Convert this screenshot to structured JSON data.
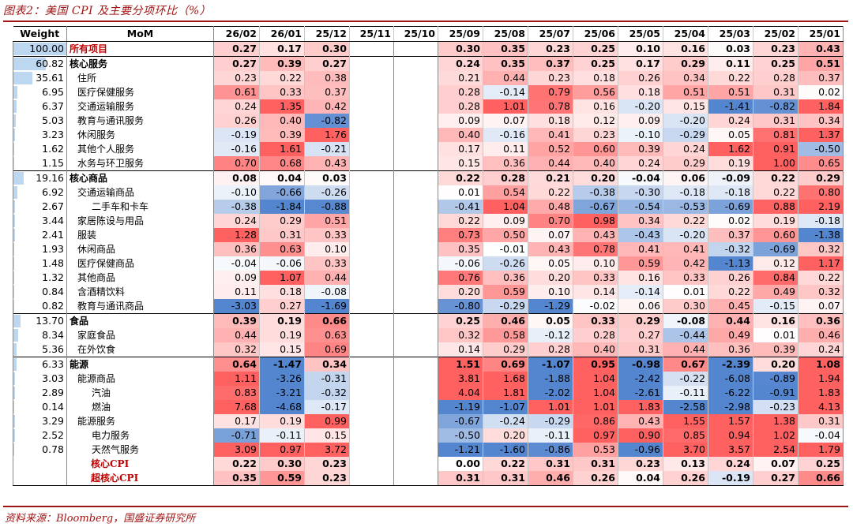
{
  "title": "图表2：美国 CPI 及主要分项环比（%）",
  "source": "资料来源：Bloomberg，国盛证券研究所",
  "chart_data": {
    "type": "table",
    "headers": [
      "Weight",
      "MoM",
      "26/02",
      "26/01",
      "25/12",
      "25/11",
      "25/10",
      "25/09",
      "25/08",
      "25/07",
      "25/06",
      "25/05",
      "25/04",
      "25/03",
      "25/02",
      "25/01"
    ],
    "colors": {
      "negative": "#5b8bd0",
      "positive": "#f06262",
      "weight_bar": "#bcd7ef"
    },
    "rows": [
      {
        "weight": "100.00",
        "name": "所有项目",
        "indent": 0,
        "style": "red",
        "values": [
          "0.27",
          "0.17",
          "0.30",
          "",
          "",
          "0.30",
          "0.35",
          "0.23",
          "0.25",
          "0.10",
          "0.16",
          "0.03",
          "0.23",
          "0.43"
        ]
      },
      {
        "weight": "60.82",
        "name": "核心服务",
        "indent": 0,
        "style": "bold",
        "values": [
          "0.27",
          "0.39",
          "0.27",
          "",
          "",
          "0.24",
          "0.35",
          "0.37",
          "0.25",
          "0.17",
          "0.29",
          "0.11",
          "0.25",
          "0.51"
        ]
      },
      {
        "weight": "35.61",
        "name": "住所",
        "indent": 1,
        "style": "",
        "values": [
          "0.23",
          "0.22",
          "0.38",
          "",
          "",
          "0.21",
          "0.44",
          "0.23",
          "0.18",
          "0.26",
          "0.34",
          "0.22",
          "0.28",
          "0.37"
        ]
      },
      {
        "weight": "6.95",
        "name": "医疗保健服务",
        "indent": 1,
        "style": "",
        "values": [
          "0.61",
          "0.33",
          "0.37",
          "",
          "",
          "0.28",
          "-0.14",
          "0.79",
          "0.56",
          "0.18",
          "0.51",
          "0.51",
          "0.31",
          "0.02"
        ]
      },
      {
        "weight": "6.37",
        "name": "交通运输服务",
        "indent": 1,
        "style": "",
        "values": [
          "0.24",
          "1.35",
          "0.42",
          "",
          "",
          "0.28",
          "1.01",
          "0.78",
          "0.16",
          "-0.20",
          "0.15",
          "-1.41",
          "-0.82",
          "1.84"
        ]
      },
      {
        "weight": "5.03",
        "name": "教育与通讯服务",
        "indent": 1,
        "style": "",
        "values": [
          "0.26",
          "0.40",
          "-0.82",
          "",
          "",
          "0.09",
          "0.07",
          "0.18",
          "0.12",
          "0.09",
          "-0.20",
          "0.24",
          "0.31",
          "0.34"
        ]
      },
      {
        "weight": "3.23",
        "name": "休闲服务",
        "indent": 1,
        "style": "",
        "values": [
          "-0.19",
          "0.39",
          "1.76",
          "",
          "",
          "0.40",
          "-0.16",
          "0.41",
          "0.23",
          "-0.10",
          "-0.29",
          "0.05",
          "0.81",
          "1.37"
        ]
      },
      {
        "weight": "1.62",
        "name": "其他个人服务",
        "indent": 1,
        "style": "",
        "values": [
          "-0.16",
          "1.61",
          "-0.21",
          "",
          "",
          "0.17",
          "0.11",
          "0.52",
          "0.60",
          "0.39",
          "0.24",
          "1.62",
          "0.91",
          "-0.50"
        ]
      },
      {
        "weight": "1.15",
        "name": "水务与环卫服务",
        "indent": 1,
        "style": "",
        "values": [
          "0.70",
          "0.68",
          "0.43",
          "",
          "",
          "0.15",
          "0.36",
          "0.44",
          "0.40",
          "0.24",
          "0.29",
          "0.19",
          "1.00",
          "0.65"
        ]
      },
      {
        "weight": "19.16",
        "name": "核心商品",
        "indent": 0,
        "style": "bold",
        "values": [
          "0.08",
          "0.04",
          "0.03",
          "",
          "",
          "0.22",
          "0.28",
          "0.21",
          "0.20",
          "-0.04",
          "0.06",
          "-0.09",
          "0.22",
          "0.29"
        ]
      },
      {
        "weight": "6.92",
        "name": "交通运输商品",
        "indent": 1,
        "style": "",
        "values": [
          "-0.10",
          "-0.66",
          "-0.26",
          "",
          "",
          "0.01",
          "0.54",
          "0.22",
          "-0.38",
          "-0.30",
          "-0.18",
          "-0.18",
          "0.22",
          "0.80"
        ]
      },
      {
        "weight": "2.67",
        "name": "二手车和卡车",
        "indent": 2,
        "style": "",
        "values": [
          "-0.38",
          "-1.84",
          "-0.88",
          "",
          "",
          "-0.41",
          "1.04",
          "0.48",
          "-0.67",
          "-0.54",
          "-0.53",
          "-0.69",
          "0.88",
          "2.19"
        ]
      },
      {
        "weight": "3.44",
        "name": "家居陈设与用品",
        "indent": 1,
        "style": "",
        "values": [
          "0.24",
          "0.29",
          "0.51",
          "",
          "",
          "0.22",
          "0.09",
          "0.70",
          "0.98",
          "0.34",
          "0.22",
          "0.02",
          "0.19",
          "-0.18"
        ]
      },
      {
        "weight": "2.41",
        "name": "服装",
        "indent": 1,
        "style": "",
        "values": [
          "1.28",
          "0.31",
          "0.33",
          "",
          "",
          "0.73",
          "0.50",
          "0.07",
          "0.43",
          "-0.43",
          "-0.20",
          "0.37",
          "0.60",
          "-1.38"
        ]
      },
      {
        "weight": "1.93",
        "name": "休闲商品",
        "indent": 1,
        "style": "",
        "values": [
          "0.36",
          "0.63",
          "0.10",
          "",
          "",
          "0.35",
          "-0.01",
          "0.43",
          "0.78",
          "0.41",
          "0.41",
          "-0.32",
          "-0.69",
          "0.32"
        ]
      },
      {
        "weight": "1.48",
        "name": "医疗保健商品",
        "indent": 1,
        "style": "",
        "values": [
          "-0.04",
          "-0.06",
          "0.33",
          "",
          "",
          "-0.06",
          "-0.26",
          "0.05",
          "0.10",
          "0.59",
          "0.42",
          "-1.13",
          "0.12",
          "1.17"
        ]
      },
      {
        "weight": "1.32",
        "name": "其他商品",
        "indent": 1,
        "style": "",
        "values": [
          "0.09",
          "1.07",
          "0.44",
          "",
          "",
          "0.76",
          "0.36",
          "0.20",
          "0.33",
          "0.16",
          "0.33",
          "0.26",
          "0.84",
          "0.22"
        ]
      },
      {
        "weight": "0.84",
        "name": "含酒精饮料",
        "indent": 1,
        "style": "",
        "values": [
          "0.11",
          "0.18",
          "-0.08",
          "",
          "",
          "0.20",
          "0.59",
          "0.10",
          "0.14",
          "-0.14",
          "0.01",
          "0.22",
          "0.49",
          "0.32"
        ]
      },
      {
        "weight": "0.82",
        "name": "教育与通讯商品",
        "indent": 1,
        "style": "",
        "values": [
          "-3.03",
          "0.27",
          "-1.69",
          "",
          "",
          "-0.80",
          "-0.29",
          "-1.29",
          "-0.02",
          "0.06",
          "0.30",
          "0.45",
          "-0.15",
          "0.07"
        ]
      },
      {
        "weight": "13.70",
        "name": "食品",
        "indent": 0,
        "style": "bold",
        "values": [
          "0.39",
          "0.19",
          "0.66",
          "",
          "",
          "0.25",
          "0.46",
          "0.05",
          "0.33",
          "0.29",
          "-0.08",
          "0.44",
          "0.16",
          "0.36"
        ]
      },
      {
        "weight": "8.34",
        "name": "家庭食品",
        "indent": 1,
        "style": "",
        "values": [
          "0.44",
          "0.19",
          "0.63",
          "",
          "",
          "0.32",
          "0.58",
          "-0.12",
          "0.28",
          "0.27",
          "-0.44",
          "0.49",
          "0.01",
          "0.46"
        ]
      },
      {
        "weight": "5.36",
        "name": "在外饮食",
        "indent": 1,
        "style": "",
        "values": [
          "0.32",
          "0.15",
          "0.69",
          "",
          "",
          "0.14",
          "0.29",
          "0.28",
          "0.40",
          "0.31",
          "0.44",
          "0.36",
          "0.39",
          "0.24"
        ]
      },
      {
        "weight": "6.33",
        "name": "能源",
        "indent": 0,
        "style": "bold",
        "values": [
          "0.64",
          "-1.47",
          "0.34",
          "",
          "",
          "1.51",
          "0.69",
          "-1.07",
          "0.95",
          "-0.98",
          "0.67",
          "-2.39",
          "0.20",
          "1.08"
        ]
      },
      {
        "weight": "3.03",
        "name": "能源商品",
        "indent": 1,
        "style": "",
        "values": [
          "1.11",
          "-3.26",
          "-0.31",
          "",
          "",
          "3.81",
          "1.68",
          "-1.88",
          "1.04",
          "-2.42",
          "-0.22",
          "-6.08",
          "-0.89",
          "1.94"
        ]
      },
      {
        "weight": "2.89",
        "name": "汽油",
        "indent": 2,
        "style": "",
        "values": [
          "0.83",
          "-3.21",
          "-0.32",
          "",
          "",
          "4.04",
          "1.81",
          "-2.02",
          "1.04",
          "-2.61",
          "-0.11",
          "-6.22",
          "-0.91",
          "1.83"
        ]
      },
      {
        "weight": "0.14",
        "name": "燃油",
        "indent": 2,
        "style": "",
        "values": [
          "7.68",
          "-4.68",
          "-0.17",
          "",
          "",
          "-1.19",
          "-1.07",
          "1.01",
          "1.01",
          "1.83",
          "-2.58",
          "-2.98",
          "-0.23",
          "4.13"
        ]
      },
      {
        "weight": "3.29",
        "name": "能源服务",
        "indent": 1,
        "style": "",
        "values": [
          "0.17",
          "0.19",
          "0.99",
          "",
          "",
          "-0.67",
          "-0.24",
          "-0.29",
          "0.86",
          "0.43",
          "1.55",
          "1.57",
          "1.38",
          "0.31"
        ]
      },
      {
        "weight": "2.52",
        "name": "电力服务",
        "indent": 2,
        "style": "",
        "values": [
          "-0.71",
          "-0.11",
          "0.15",
          "",
          "",
          "-0.50",
          "0.20",
          "-0.11",
          "0.97",
          "0.90",
          "0.85",
          "0.94",
          "1.02",
          "-0.04"
        ]
      },
      {
        "weight": "0.78",
        "name": "天然气服务",
        "indent": 2,
        "style": "",
        "values": [
          "3.09",
          "0.97",
          "3.72",
          "",
          "",
          "-1.21",
          "-1.60",
          "-0.86",
          "0.53",
          "-0.96",
          "3.70",
          "3.57",
          "2.54",
          "1.79"
        ]
      },
      {
        "weight": "",
        "name": "核心CPI",
        "indent": 1,
        "style": "redc",
        "values": [
          "0.22",
          "0.30",
          "0.23",
          "",
          "",
          "0.00",
          "0.22",
          "0.31",
          "0.31",
          "0.23",
          "0.13",
          "0.24",
          "0.07",
          "0.25"
        ]
      },
      {
        "weight": "",
        "name": "超核心CPI",
        "indent": 1,
        "style": "redc",
        "values": [
          "0.35",
          "0.59",
          "0.23",
          "",
          "",
          "0.31",
          "0.31",
          "0.46",
          "0.26",
          "0.04",
          "0.26",
          "-0.19",
          "0.27",
          "0.66"
        ]
      }
    ]
  }
}
